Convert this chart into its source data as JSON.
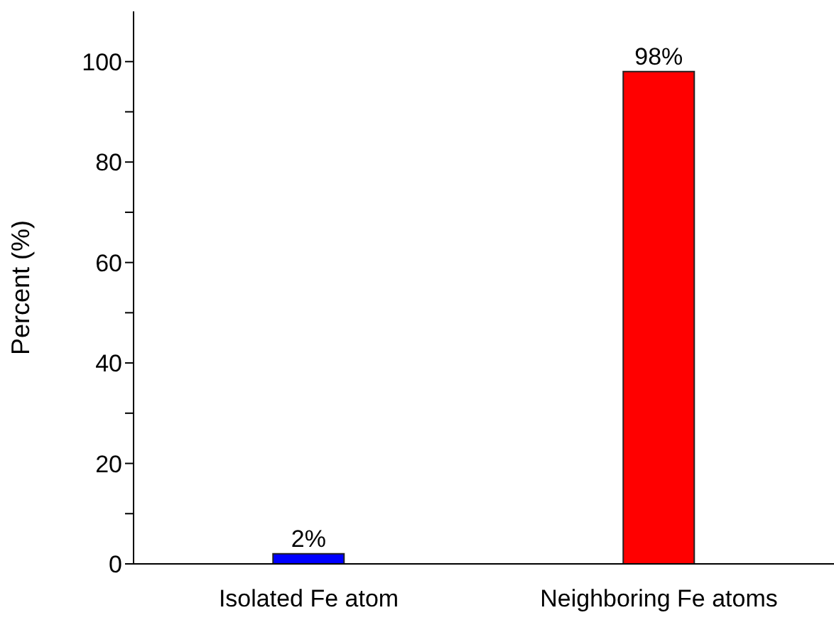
{
  "chart_data": {
    "type": "bar",
    "categories": [
      "Isolated Fe atom",
      "Neighboring Fe atoms"
    ],
    "values": [
      2,
      98
    ],
    "colors": [
      "#0000ff",
      "#ff0000"
    ],
    "value_labels": [
      "2%",
      "98%"
    ],
    "ylabel": "Percent (%)",
    "ylim": [
      0,
      110
    ],
    "yticks": [
      0,
      {
        "value": 10,
        "label": null
      },
      20,
      {
        "value": 30,
        "label": null
      },
      40,
      {
        "value": 50,
        "label": null
      },
      60,
      {
        "value": 70,
        "label": null
      },
      80,
      {
        "value": 90,
        "label": null
      },
      100
    ],
    "grid": false,
    "legend": false
  }
}
